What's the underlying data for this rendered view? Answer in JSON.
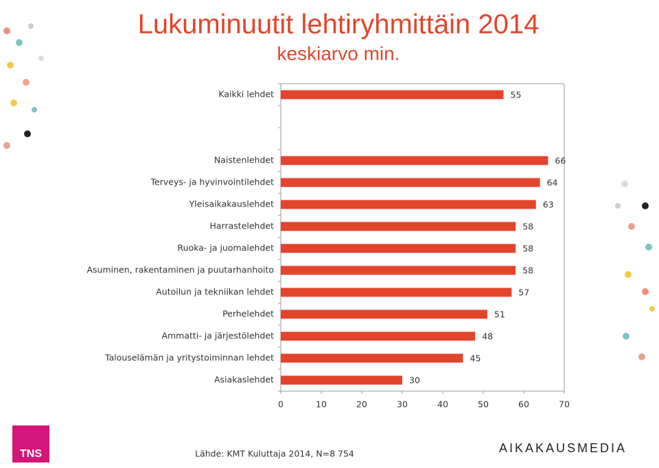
{
  "chart_data": {
    "type": "barh",
    "title": "Lukuminuutit lehtiryhmittäin 2014",
    "subtitle": "keskiarvo min.",
    "categories": [
      "Kaikki lehdet",
      null,
      null,
      "Naistenlehdet",
      "Terveys- ja hyvinvointilehdet",
      "Yleisaikakauslehdet",
      "Harrastelehdet",
      "Ruoka- ja juomalehdet",
      "Asuminen, rakentaminen ja puutarhanhoito",
      "Autoilun ja tekniikan lehdet",
      "Perhelehdet",
      "Ammatti- ja järjestölehdet",
      "Talouselämän ja yritystoiminnan lehdet",
      "Asiakaslehdet"
    ],
    "values": [
      55,
      null,
      null,
      66,
      64,
      63,
      58,
      58,
      58,
      57,
      51,
      48,
      45,
      30
    ],
    "color": "#e2452b",
    "xlim": [
      0,
      70
    ],
    "xticks": [
      0,
      10,
      20,
      30,
      40,
      50,
      60,
      70
    ],
    "source": "Lähde: KMT Kuluttaja 2014, N=8 754"
  },
  "logos": {
    "left": "TNS",
    "right": "AIKAKAUSMEDIA"
  }
}
